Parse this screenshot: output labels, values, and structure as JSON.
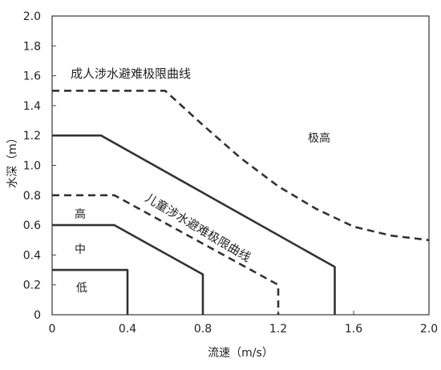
{
  "chart_data": {
    "type": "line",
    "xlabel": "流速（m/s）",
    "ylabel": "水深（m）",
    "xlim": [
      0,
      2.0
    ],
    "ylim": [
      0,
      2.0
    ],
    "xticks": [
      0,
      0.4,
      0.8,
      1.2,
      1.6,
      2.0
    ],
    "xtick_labels": [
      "0",
      "0.4",
      "0.8",
      "1.2",
      "1.6",
      "2.0"
    ],
    "yticks": [
      0,
      0.2,
      0.4,
      0.6,
      0.8,
      1.0,
      1.2,
      1.4,
      1.6,
      1.8,
      2.0
    ],
    "ytick_labels": [
      "0",
      "0.2",
      "0.4",
      "0.6",
      "0.8",
      "1.0",
      "1.2",
      "1.4",
      "1.6",
      "1.8",
      "2.0"
    ],
    "grid": false,
    "series": [
      {
        "style": "dashed",
        "points": [
          [
            0.0,
            1.5
          ],
          [
            0.6,
            1.5
          ],
          [
            0.8,
            1.27
          ],
          [
            1.0,
            1.05
          ],
          [
            1.2,
            0.86
          ],
          [
            1.4,
            0.71
          ],
          [
            1.6,
            0.59
          ],
          [
            1.8,
            0.53
          ],
          [
            2.0,
            0.5
          ]
        ]
      },
      {
        "style": "solid",
        "points": [
          [
            0.0,
            1.2
          ],
          [
            0.26,
            1.2
          ],
          [
            1.5,
            0.32
          ],
          [
            1.5,
            0.0
          ]
        ]
      },
      {
        "style": "dashed",
        "points": [
          [
            0.0,
            0.8
          ],
          [
            0.33,
            0.8
          ],
          [
            1.2,
            0.2
          ],
          [
            1.2,
            0.0
          ]
        ]
      },
      {
        "style": "solid",
        "points": [
          [
            0.0,
            0.6
          ],
          [
            0.33,
            0.6
          ],
          [
            0.8,
            0.27
          ],
          [
            0.8,
            0.0
          ]
        ]
      },
      {
        "style": "solid",
        "points": [
          [
            0.0,
            0.3
          ],
          [
            0.4,
            0.3
          ],
          [
            0.4,
            0.0
          ]
        ]
      }
    ],
    "annotations": {
      "adult_curve": "成人涉水避难极限曲线",
      "child_curve": "儿童涉水避难极限曲线",
      "zone_very_high": "极高",
      "zone_high": "高",
      "zone_medium": "中",
      "zone_low": "低"
    },
    "colors": {
      "line": "#333333",
      "axis": "#444444"
    }
  }
}
